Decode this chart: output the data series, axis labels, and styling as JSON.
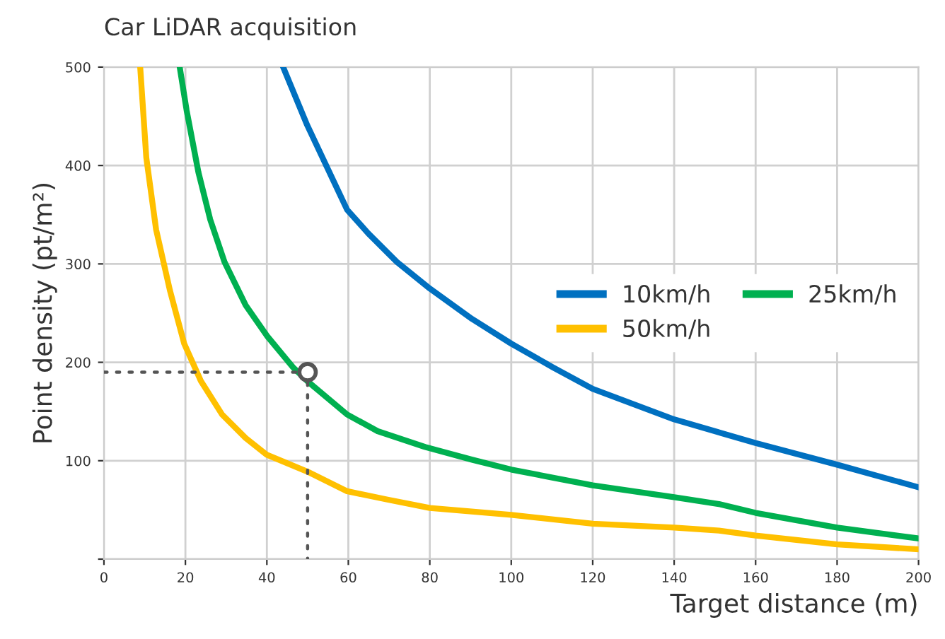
{
  "chart_data": {
    "type": "line",
    "title": "Car LiDAR acquisition",
    "xlabel": "Target distance (m)",
    "ylabel": "Point density (pt/m²)",
    "xlim": [
      0,
      200
    ],
    "ylim": [
      0,
      500
    ],
    "xticks": [
      0,
      20,
      40,
      60,
      80,
      100,
      120,
      140,
      160,
      180,
      200
    ],
    "yticks": [
      {
        "value": 0,
        "label": null
      },
      100,
      200,
      300,
      400,
      500
    ],
    "grid": true,
    "legend": "center right",
    "marker": "none",
    "line_style": "solid",
    "series": [
      {
        "name": "10km/h",
        "color": "#0070c0",
        "x": [
          44,
          49.9,
          59.7,
          64.9,
          71.9,
          80,
          90.4,
          100,
          110.2,
          120,
          140,
          160,
          180,
          200
        ],
        "values": [
          500,
          441,
          355,
          331,
          302,
          275,
          244,
          219,
          195,
          173,
          142,
          118,
          96,
          73
        ]
      },
      {
        "name": "25km/h",
        "color": "#00b050",
        "x": [
          18.6,
          20.3,
          23.2,
          26.1,
          29.6,
          34.8,
          40,
          46.4,
          49.9,
          59.7,
          67.2,
          78.8,
          90.4,
          100,
          120,
          140,
          151,
          160,
          180,
          200
        ],
        "values": [
          500,
          456,
          393,
          345,
          302,
          258,
          227,
          195,
          181,
          147,
          130,
          114,
          101,
          91,
          75,
          63,
          56,
          47,
          32,
          21
        ]
      },
      {
        "name": "50km/h",
        "color": "#ffc000",
        "x": [
          8.9,
          10.4,
          12.8,
          16.2,
          19.7,
          23.8,
          29,
          34.8,
          40,
          49.9,
          59.7,
          69.6,
          80,
          100,
          120,
          140,
          151,
          160,
          180,
          200
        ],
        "values": [
          500,
          408,
          335,
          273,
          219,
          181,
          147,
          123,
          106,
          89,
          69,
          60.5,
          52,
          45,
          36,
          32,
          29,
          24,
          15,
          10
        ]
      },
      {
        "type": "line",
        "color": "#555555",
        "line_style": "dotted",
        "x": [
          0,
          50,
          50
        ],
        "values": [
          190,
          190,
          0
        ]
      },
      {
        "type": "scatter",
        "color": "#555555",
        "marker": "circle",
        "x": [
          50
        ],
        "values": [
          190
        ]
      }
    ]
  }
}
